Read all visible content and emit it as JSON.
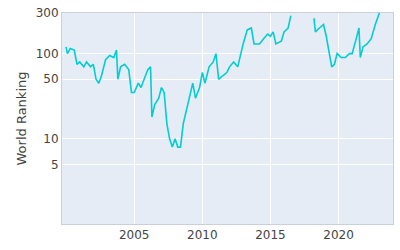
{
  "chart_data": {
    "type": "line",
    "y_label": "World Ranking",
    "log": "y",
    "grid": true,
    "color": "#00ced1",
    "x": [
      2000.0,
      2000.1,
      2000.3,
      2000.6,
      2000.8,
      2001.0,
      2001.3,
      2001.5,
      2001.8,
      2002.0,
      2002.2,
      2002.4,
      2002.6,
      2002.9,
      2003.2,
      2003.5,
      2003.7,
      2003.8,
      2004.0,
      2004.3,
      2004.6,
      2004.8,
      2005.0,
      2005.3,
      2005.5,
      2005.8,
      2006.0,
      2006.2,
      2006.3,
      2006.5,
      2006.8,
      2007.0,
      2007.2,
      2007.4,
      2007.6,
      2007.8,
      2008.0,
      2008.2,
      2008.4,
      2008.6,
      2008.9,
      2009.1,
      2009.3,
      2009.5,
      2009.8,
      2010.0,
      2010.2,
      2010.5,
      2010.8,
      2011.0,
      2011.2,
      2011.5,
      2011.8,
      2012.0,
      2012.3,
      2012.6,
      2012.8,
      2013.0,
      2013.3,
      2013.6,
      2013.8,
      2014.2,
      2014.5,
      2014.8,
      2015.0,
      2015.2,
      2015.4,
      2015.8,
      2016.0,
      2016.3,
      2016.5,
      2016.6,
      2018.2,
      2018.3,
      2018.6,
      2018.9,
      2019.1,
      2019.3,
      2019.5,
      2019.7,
      2019.9,
      2020.2,
      2020.5,
      2020.8,
      2021.0,
      2021.3,
      2021.5,
      2021.6,
      2021.8,
      2022.1,
      2022.4,
      2022.7,
      2023.0
    ],
    "values": [
      120,
      100,
      115,
      110,
      75,
      80,
      70,
      80,
      70,
      75,
      50,
      45,
      55,
      85,
      95,
      90,
      110,
      50,
      70,
      75,
      65,
      35,
      35,
      45,
      40,
      55,
      65,
      70,
      18,
      25,
      30,
      40,
      35,
      15,
      10,
      8,
      10,
      8,
      8,
      15,
      25,
      35,
      45,
      30,
      40,
      60,
      45,
      70,
      80,
      100,
      50,
      55,
      60,
      70,
      80,
      70,
      100,
      130,
      190,
      200,
      130,
      130,
      150,
      170,
      160,
      180,
      130,
      140,
      180,
      200,
      280,
      null,
      260,
      180,
      200,
      220,
      160,
      110,
      70,
      75,
      100,
      90,
      90,
      100,
      100,
      150,
      200,
      90,
      120,
      130,
      150,
      220,
      300
    ],
    "xlim": [
      1999.7,
      2024
    ],
    "xticks": [
      2005,
      2010,
      2015,
      2020
    ],
    "ylim": [
      1,
      300
    ],
    "yticks": [
      5,
      10,
      50,
      100,
      300
    ]
  }
}
